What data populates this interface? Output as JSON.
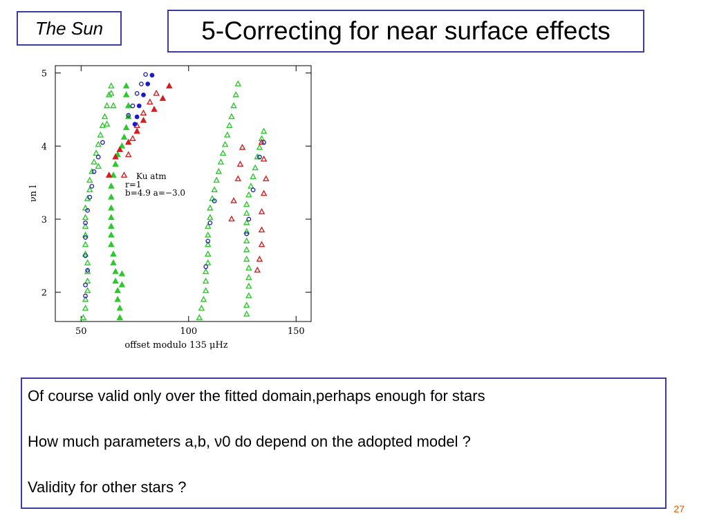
{
  "slide": {
    "tag": "The Sun",
    "title": "5-Correcting for near surface effects",
    "page_number": "27",
    "lines": [
      "Of course valid only over the  fitted domain,perhaps enough for stars",
      "How much parameters a,b, ν0 do depend on the adopted model  ?",
      "Validity for other stars ?"
    ]
  },
  "chart_data": {
    "type": "scatter",
    "xlabel": "offset modulo   135 μHz",
    "ylabel": "νn l",
    "xlim": [
      38,
      157
    ],
    "ylim": [
      1.6,
      5.1
    ],
    "xticks": [
      "50",
      "100",
      "150"
    ],
    "yticks": [
      "2",
      "3",
      "4",
      "5"
    ],
    "annotation": [
      "Ku atm",
      "r=1",
      "b=4.9  a=−3.0"
    ],
    "colors": {
      "obs_open": "#1a1aa8",
      "obs_filled": "#1a1acc",
      "green": "#2ec82e",
      "red": "#d21e1e"
    },
    "series": [
      {
        "style": "green-open-triangle",
        "points": [
          [
            51,
            1.65
          ],
          [
            52,
            1.78
          ],
          [
            52,
            1.9
          ],
          [
            53,
            2.02
          ],
          [
            53,
            2.15
          ],
          [
            53,
            2.28
          ],
          [
            53,
            2.4
          ],
          [
            52,
            2.52
          ],
          [
            52,
            2.65
          ],
          [
            52,
            2.78
          ],
          [
            52,
            2.9
          ],
          [
            52,
            3.02
          ],
          [
            52,
            3.15
          ],
          [
            53,
            3.28
          ],
          [
            54,
            3.4
          ],
          [
            54,
            3.53
          ],
          [
            55,
            3.65
          ],
          [
            56,
            3.78
          ],
          [
            57,
            3.9
          ],
          [
            58,
            4.02
          ],
          [
            59,
            4.15
          ],
          [
            60,
            4.28
          ],
          [
            61,
            4.4
          ],
          [
            62,
            4.55
          ],
          [
            63,
            4.7
          ],
          [
            64,
            4.82
          ],
          [
            64,
            4.72
          ],
          [
            65,
            4.55
          ],
          [
            62,
            4.3
          ],
          [
            58,
            3.72
          ]
        ]
      },
      {
        "style": "green-filled-triangle",
        "points": [
          [
            68,
            1.65
          ],
          [
            68,
            1.78
          ],
          [
            67,
            1.9
          ],
          [
            67,
            2.02
          ],
          [
            66,
            2.15
          ],
          [
            66,
            2.28
          ],
          [
            65,
            2.4
          ],
          [
            65,
            2.52
          ],
          [
            64,
            2.65
          ],
          [
            64,
            2.78
          ],
          [
            64,
            2.9
          ],
          [
            64,
            3.02
          ],
          [
            64,
            3.15
          ],
          [
            64,
            3.3
          ],
          [
            64,
            3.45
          ],
          [
            65,
            3.6
          ],
          [
            66,
            3.75
          ],
          [
            67,
            3.88
          ],
          [
            69,
            4.0
          ],
          [
            70,
            4.12
          ],
          [
            71,
            4.25
          ],
          [
            72,
            4.4
          ],
          [
            72,
            4.55
          ],
          [
            71,
            4.7
          ],
          [
            71,
            4.82
          ],
          [
            69,
            2.1
          ],
          [
            69,
            2.25
          ]
        ]
      },
      {
        "style": "green-open-triangle",
        "points": [
          [
            105,
            1.65
          ],
          [
            106,
            1.78
          ],
          [
            107,
            1.9
          ],
          [
            108,
            2.02
          ],
          [
            108,
            2.15
          ],
          [
            108,
            2.28
          ],
          [
            109,
            2.4
          ],
          [
            109,
            2.52
          ],
          [
            109,
            2.65
          ],
          [
            109,
            2.78
          ],
          [
            109,
            2.9
          ],
          [
            110,
            3.02
          ],
          [
            110,
            3.15
          ],
          [
            111,
            3.28
          ],
          [
            112,
            3.4
          ],
          [
            113,
            3.53
          ],
          [
            114,
            3.65
          ],
          [
            115,
            3.78
          ],
          [
            116,
            3.9
          ],
          [
            117,
            4.02
          ],
          [
            118,
            4.15
          ],
          [
            119,
            4.28
          ],
          [
            120,
            4.4
          ],
          [
            121,
            4.55
          ],
          [
            122,
            4.7
          ],
          [
            123,
            4.85
          ]
        ]
      },
      {
        "style": "green-open-triangle",
        "points": [
          [
            127,
            1.7
          ],
          [
            127,
            1.82
          ],
          [
            128,
            1.95
          ],
          [
            128,
            2.08
          ],
          [
            128,
            2.2
          ],
          [
            128,
            2.33
          ],
          [
            127,
            2.45
          ],
          [
            127,
            2.58
          ],
          [
            127,
            2.7
          ],
          [
            127,
            2.83
          ],
          [
            127,
            2.95
          ],
          [
            127,
            3.08
          ],
          [
            127,
            3.2
          ],
          [
            128,
            3.33
          ],
          [
            129,
            3.45
          ],
          [
            130,
            3.58
          ],
          [
            131,
            3.7
          ],
          [
            132,
            3.85
          ],
          [
            133,
            3.98
          ],
          [
            134,
            4.1
          ],
          [
            135,
            4.2
          ]
        ]
      },
      {
        "style": "red-open-triangle",
        "points": [
          [
            70,
            3.6
          ],
          [
            72,
            3.88
          ],
          [
            74,
            4.1
          ],
          [
            76,
            4.28
          ],
          [
            79,
            4.45
          ],
          [
            82,
            4.6
          ],
          [
            85,
            4.72
          ],
          [
            132,
            2.3
          ],
          [
            133,
            2.45
          ],
          [
            134,
            2.65
          ],
          [
            134,
            2.85
          ],
          [
            134,
            3.1
          ],
          [
            135,
            3.35
          ],
          [
            136,
            3.55
          ],
          [
            135,
            3.82
          ],
          [
            134,
            4.05
          ],
          [
            120,
            3.0
          ],
          [
            121,
            3.25
          ],
          [
            123,
            3.55
          ],
          [
            124,
            3.75
          ],
          [
            125,
            3.98
          ]
        ]
      },
      {
        "style": "red-filled-triangle",
        "points": [
          [
            63,
            3.6
          ],
          [
            66,
            3.85
          ],
          [
            68,
            3.95
          ],
          [
            72,
            4.05
          ],
          [
            76,
            4.2
          ],
          [
            79,
            4.35
          ],
          [
            84,
            4.5
          ],
          [
            88,
            4.65
          ],
          [
            91,
            4.82
          ]
        ]
      },
      {
        "style": "navy-open-circle",
        "points": [
          [
            52,
            1.95
          ],
          [
            52,
            2.1
          ],
          [
            53,
            2.3
          ],
          [
            52,
            2.5
          ],
          [
            52,
            2.75
          ],
          [
            52,
            2.95
          ],
          [
            53,
            3.12
          ],
          [
            54,
            3.3
          ],
          [
            55,
            3.45
          ],
          [
            56,
            3.65
          ],
          [
            58,
            3.85
          ],
          [
            60,
            4.05
          ],
          [
            72,
            4.42
          ],
          [
            74,
            4.55
          ],
          [
            76,
            4.72
          ],
          [
            78,
            4.85
          ],
          [
            80,
            4.98
          ],
          [
            108,
            2.35
          ],
          [
            109,
            2.7
          ],
          [
            110,
            2.95
          ],
          [
            112,
            3.25
          ],
          [
            127,
            2.8
          ],
          [
            128,
            3.0
          ],
          [
            130,
            3.4
          ],
          [
            133,
            3.85
          ],
          [
            135,
            4.05
          ]
        ]
      },
      {
        "style": "navy-filled-circle",
        "points": [
          [
            75,
            4.3
          ],
          [
            76,
            4.4
          ],
          [
            77,
            4.55
          ],
          [
            79,
            4.7
          ],
          [
            81,
            4.85
          ],
          [
            83,
            4.97
          ]
        ]
      }
    ]
  }
}
